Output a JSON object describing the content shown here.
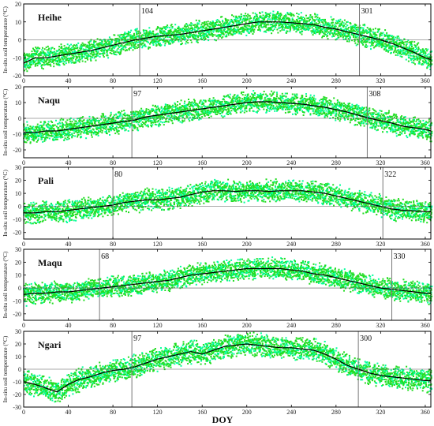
{
  "chart_data": [
    {
      "type": "scatter",
      "site": "Heihe",
      "ylabel": "In-situ soil temperature (°C)",
      "xlim": [
        0,
        365
      ],
      "ylim": [
        -20,
        20
      ],
      "x_ticks": [
        0,
        40,
        80,
        120,
        160,
        200,
        240,
        280,
        320,
        360
      ],
      "y_ticks": [
        -20,
        -10,
        0,
        10,
        20
      ],
      "markers": [
        104,
        301
      ],
      "mean_series": {
        "x": [
          0,
          10,
          20,
          30,
          40,
          50,
          60,
          70,
          80,
          90,
          100,
          110,
          120,
          130,
          140,
          150,
          160,
          170,
          180,
          190,
          200,
          210,
          220,
          230,
          240,
          250,
          260,
          270,
          280,
          290,
          300,
          310,
          320,
          330,
          340,
          350,
          360,
          365
        ],
        "y": [
          -13,
          -10,
          -10,
          -9,
          -8,
          -7,
          -6,
          -4.5,
          -3,
          -1.5,
          0,
          1,
          2,
          2.5,
          3,
          4,
          5,
          6,
          7,
          8,
          9,
          10,
          10,
          10,
          9.5,
          9,
          8.5,
          7,
          6,
          4.5,
          3,
          1.5,
          0,
          -2,
          -4.5,
          -7,
          -10,
          -11
        ]
      }
    },
    {
      "type": "scatter",
      "site": "Naqu",
      "ylabel": "In-situ soil temperature (°C)",
      "xlim": [
        0,
        365
      ],
      "ylim": [
        -25,
        20
      ],
      "x_ticks": [
        0,
        40,
        80,
        120,
        160,
        200,
        240,
        280,
        320,
        360
      ],
      "y_ticks": [
        -20,
        -10,
        0,
        10,
        20
      ],
      "markers": [
        97,
        308
      ],
      "mean_series": {
        "x": [
          0,
          10,
          20,
          30,
          40,
          50,
          60,
          70,
          80,
          90,
          100,
          110,
          120,
          130,
          140,
          150,
          160,
          170,
          180,
          190,
          200,
          210,
          220,
          230,
          240,
          250,
          260,
          270,
          280,
          290,
          300,
          310,
          320,
          330,
          340,
          350,
          360,
          365
        ],
        "y": [
          -9,
          -9,
          -8,
          -8,
          -7,
          -6,
          -5,
          -4,
          -3,
          -2,
          -1,
          1,
          2,
          3,
          4,
          5,
          6,
          7,
          8,
          9,
          10,
          10.5,
          10.5,
          10,
          9.5,
          9,
          8,
          7,
          5.5,
          4,
          2,
          0,
          -1.5,
          -3,
          -5,
          -6,
          -7,
          -8
        ]
      }
    },
    {
      "type": "scatter",
      "site": "Pali",
      "ylabel": "In-situ soil temperature (°C)",
      "xlim": [
        0,
        365
      ],
      "ylim": [
        -25,
        30
      ],
      "x_ticks": [
        0,
        40,
        80,
        120,
        160,
        200,
        240,
        280,
        320,
        360
      ],
      "y_ticks": [
        -20,
        -10,
        0,
        10,
        20,
        30
      ],
      "markers": [
        80,
        322
      ],
      "mean_series": {
        "x": [
          0,
          10,
          20,
          30,
          40,
          50,
          60,
          70,
          80,
          90,
          100,
          110,
          120,
          130,
          140,
          150,
          160,
          170,
          180,
          190,
          200,
          210,
          220,
          230,
          240,
          250,
          260,
          270,
          280,
          290,
          300,
          310,
          320,
          330,
          340,
          350,
          360,
          365
        ],
        "y": [
          -5,
          -5,
          -4,
          -4,
          -3,
          -2,
          -1,
          0,
          1,
          3,
          4,
          5,
          5,
          6,
          7,
          9,
          11,
          12,
          12,
          11.5,
          12,
          12,
          11.5,
          12,
          12,
          12,
          11,
          10,
          8,
          6,
          4,
          2,
          0,
          -2,
          -3,
          -3.5,
          -4,
          -4
        ]
      }
    },
    {
      "type": "scatter",
      "site": "Maqu",
      "ylabel": "In-situ soil temperature (°C)",
      "xlim": [
        0,
        365
      ],
      "ylim": [
        -25,
        30
      ],
      "x_ticks": [
        0,
        40,
        80,
        120,
        160,
        200,
        240,
        280,
        320,
        360
      ],
      "y_ticks": [
        -20,
        -10,
        0,
        10,
        20,
        30
      ],
      "markers": [
        68,
        330
      ],
      "mean_series": {
        "x": [
          0,
          10,
          20,
          30,
          40,
          50,
          60,
          70,
          80,
          90,
          100,
          110,
          120,
          130,
          140,
          150,
          160,
          170,
          180,
          190,
          200,
          210,
          220,
          230,
          240,
          250,
          260,
          270,
          280,
          290,
          300,
          310,
          320,
          330,
          340,
          350,
          360,
          365
        ],
        "y": [
          -5,
          -4,
          -4,
          -3,
          -3,
          -2,
          -1,
          0,
          1,
          2,
          3,
          4,
          5,
          6,
          8,
          10,
          11,
          12,
          13,
          14,
          15,
          15,
          15,
          15,
          14,
          13,
          11,
          10,
          8,
          6,
          4,
          2,
          0,
          -1,
          -2,
          -3,
          -4,
          -4
        ]
      }
    },
    {
      "type": "scatter",
      "site": "Ngari",
      "ylabel": "In-situ soil temperature (°C)",
      "xlabel": "DOY",
      "xlim": [
        0,
        365
      ],
      "ylim": [
        -30,
        30
      ],
      "x_ticks": [
        0,
        40,
        80,
        120,
        160,
        200,
        240,
        280,
        320,
        360
      ],
      "y_ticks": [
        -30,
        -20,
        -10,
        0,
        10,
        20,
        30
      ],
      "markers": [
        97,
        300
      ],
      "mean_series": {
        "x": [
          0,
          10,
          20,
          30,
          40,
          50,
          60,
          70,
          80,
          90,
          100,
          110,
          120,
          130,
          140,
          150,
          160,
          170,
          180,
          190,
          200,
          210,
          220,
          230,
          240,
          250,
          260,
          270,
          280,
          290,
          300,
          310,
          320,
          330,
          340,
          350,
          360,
          365
        ],
        "y": [
          -10,
          -12,
          -15,
          -18,
          -12,
          -8,
          -6,
          -3,
          -1,
          0,
          2,
          5,
          8,
          10,
          12,
          14,
          12,
          15,
          18,
          19,
          20,
          19,
          18,
          17,
          17,
          16,
          15,
          12,
          8,
          3,
          0,
          -3,
          -5,
          -6,
          -7,
          -8,
          -9,
          -9
        ]
      }
    }
  ],
  "x_axis_label": "DOY",
  "colors": {
    "scatter": "#22dd22",
    "scatter_edge": "#00ff99",
    "mean": "#000000",
    "marker_line": "#777777",
    "axis": "#000000"
  }
}
